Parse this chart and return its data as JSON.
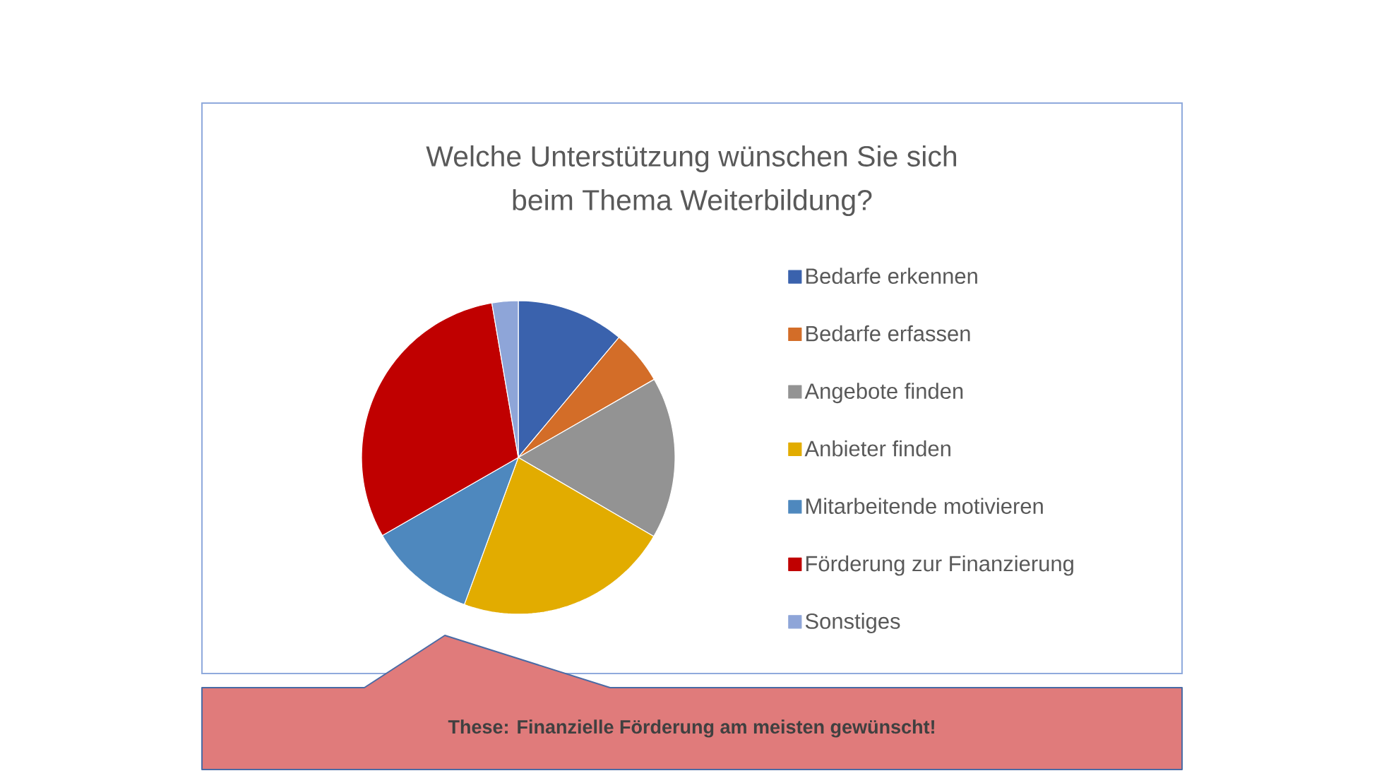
{
  "chart_data": {
    "type": "pie",
    "title": "Welche Unterstützung wünschen Sie sich beim Thema Weiterbildung?",
    "categories": [
      "Bedarfe erkennen",
      "Bedarfe erfassen",
      "Angebote finden",
      "Anbieter finden",
      "Mitarbeitende motivieren",
      "Förderung zur Finanzierung",
      "Sonstiges"
    ],
    "values": [
      11.1,
      5.6,
      16.7,
      22.2,
      11.1,
      30.6,
      2.7
    ],
    "colors": [
      "#3a62ad",
      "#d36d28",
      "#939393",
      "#e2ac00",
      "#4e88be",
      "#c00000",
      "#8ea5d8"
    ],
    "legend": "right",
    "annotations": [
      "These: Finanzielle Förderung am meisten gewünscht!"
    ]
  }
}
